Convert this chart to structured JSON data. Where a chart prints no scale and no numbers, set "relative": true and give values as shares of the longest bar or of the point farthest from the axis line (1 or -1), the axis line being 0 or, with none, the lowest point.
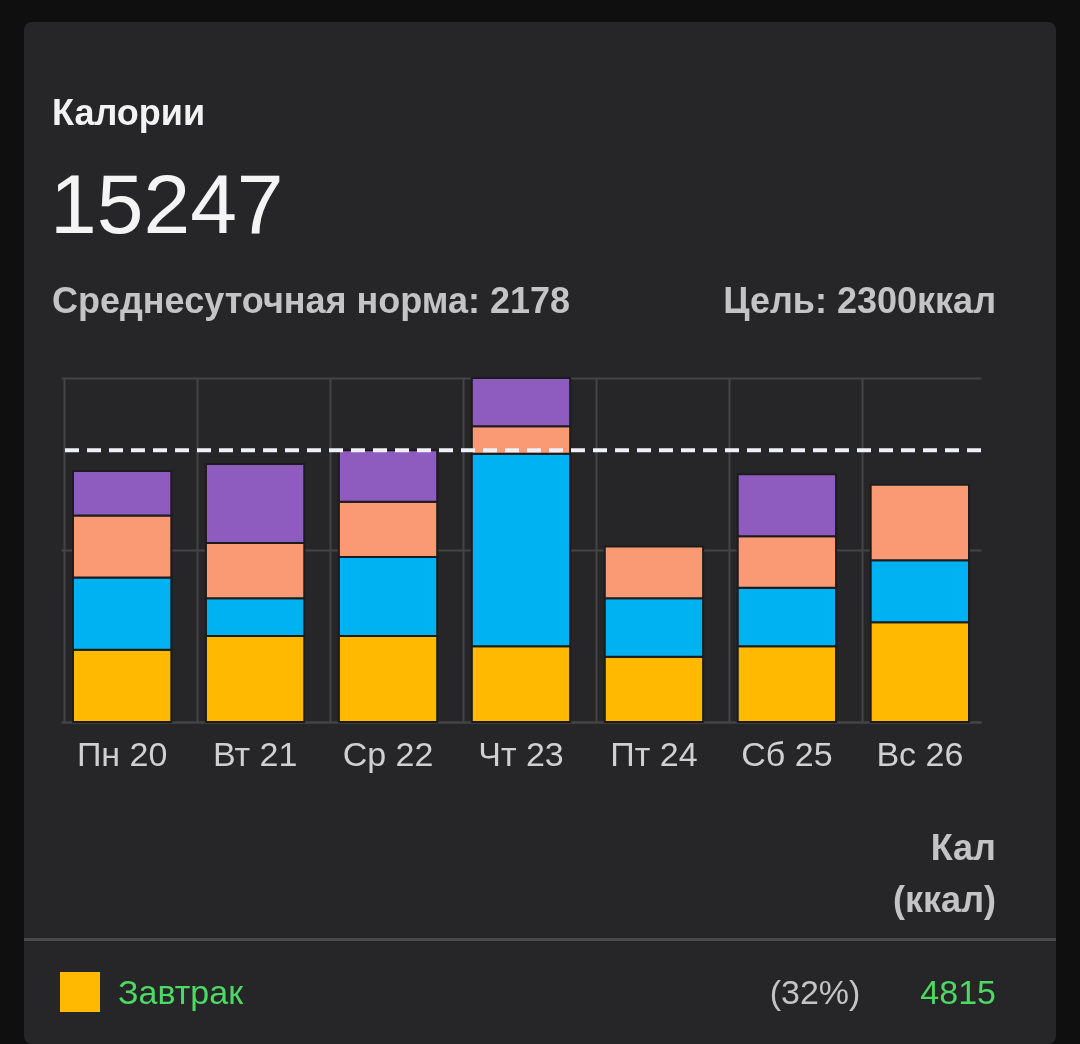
{
  "chart_data": {
    "type": "bar",
    "title": "Калории",
    "subtitle": "15247",
    "relative": true,
    "stacked": true,
    "grid": true,
    "legend": "bottom",
    "categories": [
      "Пн 20",
      "Вт 21",
      "Ср 22",
      "Чт 23",
      "Пт 24",
      "Сб 25",
      "Вс 26"
    ],
    "series": [
      {
        "name": "Завтрак",
        "color": "#ffb900",
        "values": [
          0.21,
          0.25,
          0.25,
          0.22,
          0.19,
          0.22,
          0.29
        ]
      },
      {
        "color": "#00b2f2",
        "values": [
          0.21,
          0.11,
          0.23,
          0.56,
          0.17,
          0.17,
          0.18
        ]
      },
      {
        "color": "#f99a74",
        "values": [
          0.18,
          0.16,
          0.16,
          0.08,
          0.15,
          0.15,
          0.22
        ]
      },
      {
        "color": "#8e5bbf",
        "values": [
          0.13,
          0.23,
          0.15,
          0.14,
          null,
          0.18,
          null
        ]
      }
    ],
    "ref_lines": [
      {
        "axis": "y",
        "value": 0.79,
        "color": "#f0f0f8",
        "line_style": "dashed"
      }
    ],
    "annotations": [
      "Среднесуточная норма: 2178",
      "Цель: 2300ккал",
      "Кал (ккал)",
      "(32%)",
      "4815"
    ]
  }
}
